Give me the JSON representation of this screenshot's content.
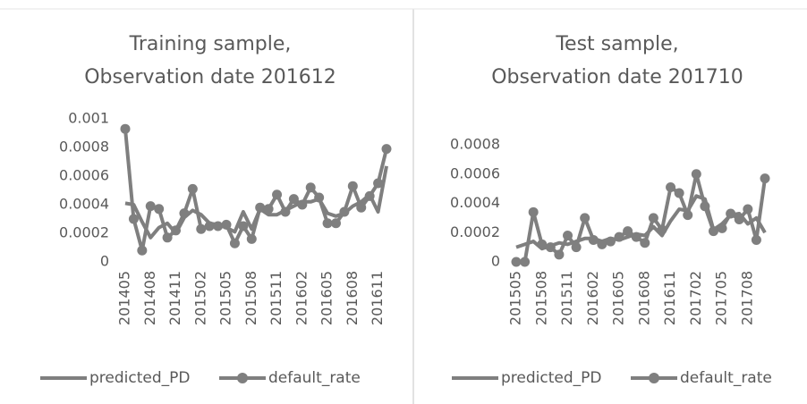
{
  "chart_data": [
    {
      "type": "line",
      "title": [
        "Training sample,",
        "Observation date 201612"
      ],
      "categories": [
        "201405",
        null,
        null,
        "201408",
        null,
        null,
        "201411",
        null,
        null,
        "201502",
        null,
        null,
        "201505",
        null,
        null,
        "201508",
        null,
        null,
        "201511",
        null,
        null,
        "201602",
        null,
        null,
        "201605",
        null,
        null,
        "201608",
        null,
        null,
        "201611",
        null
      ],
      "ylim": [
        0,
        0.001
      ],
      "yticks": [
        0,
        0.0002,
        0.0004,
        0.0006,
        0.0008,
        0.001
      ],
      "grid": false,
      "series": [
        {
          "name": "predicted_PD",
          "color": "#7f7f7f",
          "marker": "none",
          "values": [
            0.00041,
            0.0004,
            0.00028,
            0.00017,
            0.00024,
            0.00027,
            0.0002,
            0.00031,
            0.00036,
            0.00033,
            0.00027,
            0.00026,
            0.00024,
            0.00021,
            0.00035,
            0.00023,
            0.00037,
            0.00033,
            0.00033,
            0.00036,
            0.00039,
            0.00042,
            0.00042,
            0.00044,
            0.00034,
            0.00032,
            0.00034,
            0.00039,
            0.00042,
            0.00047,
            0.00035,
            0.00067
          ]
        },
        {
          "name": "default_rate",
          "color": "#7f7f7f",
          "marker": "circle",
          "values": [
            0.00093,
            0.0003,
            8e-05,
            0.00039,
            0.00037,
            0.00017,
            0.00022,
            0.00034,
            0.00051,
            0.00023,
            0.00025,
            0.00025,
            0.00026,
            0.00013,
            0.00025,
            0.00016,
            0.00038,
            0.00037,
            0.00047,
            0.00035,
            0.00044,
            0.0004,
            0.00052,
            0.00045,
            0.00027,
            0.00027,
            0.00035,
            0.00053,
            0.00038,
            0.00046,
            0.00055,
            0.00079
          ]
        }
      ]
    },
    {
      "type": "line",
      "title": [
        "Test sample,",
        "Observation date 201710"
      ],
      "categories": [
        "201505",
        null,
        null,
        "201508",
        null,
        null,
        "201511",
        null,
        null,
        "201602",
        null,
        null,
        "201605",
        null,
        null,
        "201608",
        null,
        null,
        "201611",
        null,
        null,
        "201702",
        null,
        null,
        "201705",
        null,
        null,
        "201708",
        null,
        null
      ],
      "ylim": [
        0,
        0.0008
      ],
      "yticks": [
        0,
        0.0002,
        0.0004,
        0.0006,
        0.0008
      ],
      "grid": false,
      "series": [
        {
          "name": "predicted_PD",
          "color": "#7f7f7f",
          "marker": "none",
          "values": [
            0.0001,
            0.00012,
            0.00014,
            9e-05,
            0.00011,
            0.00013,
            0.00012,
            0.00014,
            0.00016,
            0.00016,
            0.00014,
            0.00016,
            0.00015,
            0.00017,
            0.00019,
            0.00018,
            0.00024,
            0.00018,
            0.00028,
            0.00036,
            0.00035,
            0.00045,
            0.00043,
            0.00022,
            0.00026,
            0.00032,
            0.00033,
            0.00026,
            0.0003,
            0.0002
          ]
        },
        {
          "name": "default_rate",
          "color": "#7f7f7f",
          "marker": "circle",
          "values": [
            0,
            0,
            0.00034,
            0.00012,
            0.0001,
            5e-05,
            0.00018,
            0.0001,
            0.0003,
            0.00015,
            0.00012,
            0.00014,
            0.00017,
            0.00021,
            0.00017,
            0.00013,
            0.0003,
            0.00022,
            0.00051,
            0.00047,
            0.00032,
            0.0006,
            0.00038,
            0.00021,
            0.00023,
            0.00033,
            0.00029,
            0.00036,
            0.00015,
            0.00057
          ]
        }
      ]
    }
  ]
}
